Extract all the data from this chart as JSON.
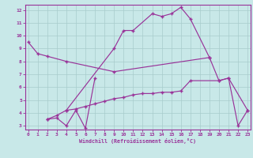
{
  "color": "#993399",
  "bg_color": "#c8e8e8",
  "grid_color": "#a8cccc",
  "xlabel": "Windchill (Refroidissement éolien,°C)",
  "xlim": [
    -0.3,
    23.3
  ],
  "ylim": [
    2.7,
    12.4
  ],
  "yticks": [
    3,
    4,
    5,
    6,
    7,
    8,
    9,
    10,
    11,
    12
  ],
  "xticks": [
    0,
    1,
    2,
    3,
    4,
    5,
    6,
    7,
    8,
    9,
    10,
    11,
    12,
    13,
    14,
    15,
    16,
    17,
    18,
    19,
    20,
    21,
    22,
    23
  ],
  "series": [
    {
      "x": [
        0,
        1,
        2,
        4,
        9,
        19,
        20,
        21,
        23
      ],
      "y": [
        9.5,
        8.6,
        8.4,
        8.0,
        7.2,
        8.3,
        6.5,
        6.7,
        4.2
      ]
    },
    {
      "x": [
        4,
        9,
        10,
        11,
        13,
        14,
        15,
        16,
        17,
        19
      ],
      "y": [
        4.2,
        9.0,
        10.4,
        10.4,
        11.7,
        11.5,
        11.7,
        12.2,
        11.3,
        8.3
      ]
    },
    {
      "x": [
        2,
        3,
        4,
        5,
        6,
        7
      ],
      "y": [
        3.5,
        3.6,
        3.0,
        4.2,
        2.8,
        6.7
      ]
    },
    {
      "x": [
        2,
        3,
        4,
        5,
        6,
        7,
        8,
        9,
        10,
        11,
        12,
        13,
        14,
        15,
        16,
        17,
        20,
        21,
        22,
        23
      ],
      "y": [
        3.5,
        3.8,
        4.2,
        4.3,
        4.5,
        4.7,
        4.9,
        5.1,
        5.2,
        5.4,
        5.5,
        5.5,
        5.6,
        5.6,
        5.7,
        6.5,
        6.5,
        6.7,
        3.0,
        4.2
      ]
    }
  ]
}
